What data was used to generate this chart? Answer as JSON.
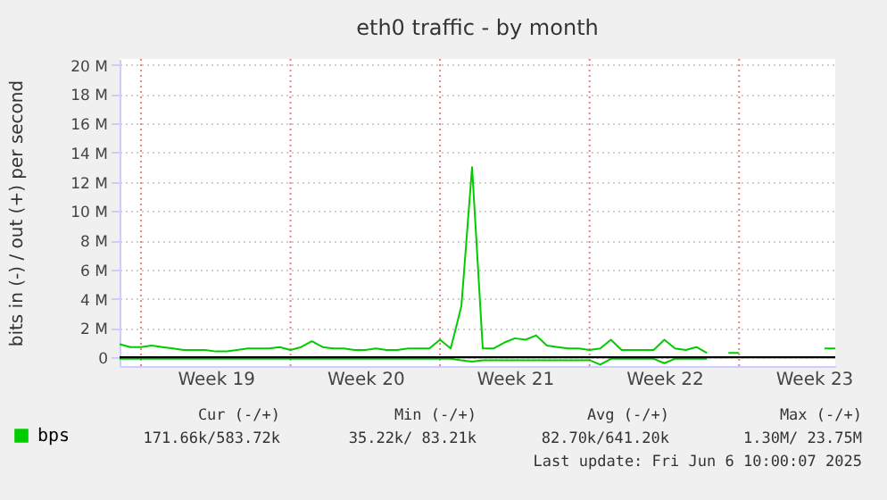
{
  "chart_data": {
    "type": "line",
    "title": "eth0 traffic - by month",
    "ylabel": "bits in (-) / out (+) per second",
    "categories": [
      null,
      null,
      null,
      null,
      null,
      null,
      null,
      null,
      null,
      "Week 19",
      null,
      null,
      null,
      null,
      null,
      null,
      null,
      null,
      null,
      null,
      null,
      null,
      null,
      "Week 20",
      null,
      null,
      null,
      null,
      null,
      null,
      null,
      null,
      null,
      null,
      null,
      null,
      null,
      "Week 21",
      null,
      null,
      null,
      null,
      null,
      null,
      null,
      null,
      null,
      null,
      null,
      null,
      null,
      "Week 22",
      null,
      null,
      null,
      null,
      null,
      null,
      null,
      null,
      null,
      null,
      null,
      null,
      null,
      "Week 23",
      null,
      null
    ],
    "ylim": [
      -0.6,
      20.4
    ],
    "yticks": [
      {
        "value": 0,
        "label": "0"
      },
      {
        "value": 2,
        "label": "2 M"
      },
      {
        "value": 4,
        "label": "4 M"
      },
      {
        "value": 6,
        "label": "6 M"
      },
      {
        "value": 8,
        "label": "8 M"
      },
      {
        "value": 10,
        "label": "10 M"
      },
      {
        "value": 12,
        "label": "12 M"
      },
      {
        "value": 14,
        "label": "14 M"
      },
      {
        "value": 16,
        "label": "16 M"
      },
      {
        "value": 18,
        "label": "18 M"
      },
      {
        "value": 20,
        "label": "20 M"
      }
    ],
    "grid": true,
    "legend": "bottom left",
    "series": [
      {
        "name": "bps",
        "color": "#00cc00",
        "values": [
          0.9,
          0.7,
          0.7,
          0.8,
          0.7,
          0.6,
          0.5,
          0.5,
          0.5,
          0.4,
          0.4,
          0.5,
          0.6,
          0.6,
          0.6,
          0.7,
          0.5,
          0.7,
          1.1,
          0.7,
          0.6,
          0.6,
          0.5,
          0.5,
          0.6,
          0.5,
          0.5,
          0.6,
          0.6,
          0.6,
          1.2,
          0.6,
          3.5,
          13.0,
          0.6,
          0.6,
          1.0,
          1.3,
          1.2,
          1.5,
          0.8,
          0.7,
          0.6,
          0.6,
          0.5,
          0.6,
          1.2,
          0.5,
          0.5,
          0.5,
          0.5,
          1.2,
          0.6,
          0.5,
          0.7,
          0.3,
          null,
          0.3,
          0.3,
          null,
          null,
          null,
          null,
          null,
          null,
          null,
          0.6,
          0.6
        ]
      },
      {
        "color": "#00cc00",
        "values": [
          -0.1,
          -0.1,
          -0.1,
          -0.1,
          -0.1,
          -0.1,
          -0.1,
          -0.1,
          -0.1,
          -0.1,
          -0.1,
          -0.1,
          -0.1,
          -0.1,
          -0.1,
          -0.1,
          -0.1,
          -0.1,
          -0.1,
          -0.1,
          -0.1,
          -0.1,
          -0.1,
          -0.1,
          -0.1,
          -0.1,
          -0.1,
          -0.1,
          -0.1,
          -0.1,
          -0.1,
          -0.1,
          -0.2,
          -0.3,
          -0.2,
          -0.2,
          -0.2,
          -0.2,
          -0.2,
          -0.2,
          -0.2,
          -0.2,
          -0.2,
          -0.2,
          -0.2,
          -0.5,
          -0.1,
          -0.1,
          -0.1,
          -0.1,
          -0.1,
          -0.4,
          -0.1,
          -0.1,
          -0.1,
          -0.1,
          null,
          null,
          null,
          null,
          null,
          null,
          null,
          null,
          null,
          null,
          null,
          null
        ]
      }
    ],
    "ref_lines": [
      {
        "axis": "y",
        "value": 0,
        "color": "#000000"
      }
    ],
    "annotations": [
      "Cur (-/+)",
      "Min (-/+)",
      "Avg (-/+)",
      "Max (-/+)",
      "171.66k/583.72k",
      "35.22k/ 83.21k",
      "82.70k/641.20k",
      "1.30M/ 23.75M",
      "Last update: Fri Jun  6 10:00:07 2025"
    ]
  }
}
